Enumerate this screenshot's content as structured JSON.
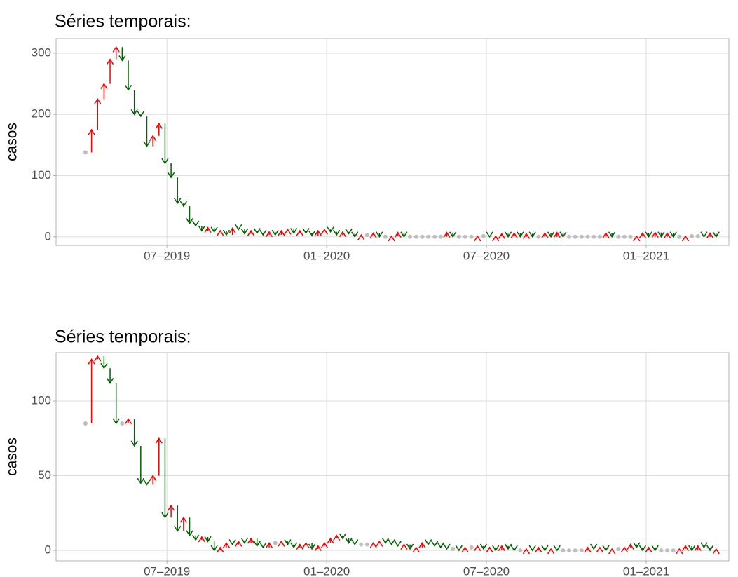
{
  "chart_data": [
    {
      "type": "arrow",
      "title": "Séries temporais:",
      "y_label": "casos",
      "up_color": "#ff0000",
      "down_color": "#006400",
      "flat_color": "#bebebe",
      "xlim": [
        2019.153,
        2021.259
      ],
      "xticks": [
        {
          "value": 2019.5,
          "label": "07–2019"
        },
        {
          "value": 2020.0,
          "label": "01–2020"
        },
        {
          "value": 2020.5,
          "label": "07–2020"
        },
        {
          "value": 2021.0,
          "label": "01–2021"
        }
      ],
      "ylim": [
        -14,
        324
      ],
      "yticks": [
        0,
        100,
        200,
        300
      ],
      "grid": true,
      "x": [
        2019.245,
        2019.264,
        2019.283,
        2019.303,
        2019.322,
        2019.341,
        2019.36,
        2019.379,
        2019.398,
        2019.418,
        2019.437,
        2019.456,
        2019.475,
        2019.494,
        2019.513,
        2019.533,
        2019.552,
        2019.571,
        2019.59,
        2019.609,
        2019.628,
        2019.648,
        2019.667,
        2019.686,
        2019.705,
        2019.724,
        2019.743,
        2019.763,
        2019.782,
        2019.801,
        2019.82,
        2019.839,
        2019.858,
        2019.878,
        2019.897,
        2019.916,
        2019.935,
        2019.954,
        2019.973,
        2019.993,
        2020.012,
        2020.031,
        2020.05,
        2020.069,
        2020.088,
        2020.108,
        2020.127,
        2020.146,
        2020.165,
        2020.184,
        2020.203,
        2020.223,
        2020.242,
        2020.261,
        2020.28,
        2020.299,
        2020.318,
        2020.338,
        2020.357,
        2020.376,
        2020.395,
        2020.414,
        2020.433,
        2020.453,
        2020.472,
        2020.491,
        2020.51,
        2020.529,
        2020.548,
        2020.568,
        2020.587,
        2020.606,
        2020.625,
        2020.644,
        2020.663,
        2020.683,
        2020.702,
        2020.721,
        2020.74,
        2020.759,
        2020.778,
        2020.798,
        2020.817,
        2020.836,
        2020.855,
        2020.874,
        2020.893,
        2020.913,
        2020.932,
        2020.951,
        2020.97,
        2020.989,
        2021.008,
        2021.028,
        2021.047,
        2021.066,
        2021.085,
        2021.104,
        2021.123,
        2021.143,
        2021.162,
        2021.181,
        2021.2,
        2021.219
      ],
      "values": [
        138,
        175,
        225,
        250,
        290,
        310,
        288,
        240,
        200,
        197,
        148,
        165,
        185,
        120,
        97,
        55,
        50,
        22,
        18,
        10,
        15,
        8,
        10,
        3,
        14,
        12,
        5,
        10,
        6,
        3,
        8,
        3,
        10,
        12,
        6,
        10,
        6,
        2,
        10,
        12,
        8,
        3,
        8,
        5,
        0,
        3,
        3,
        6,
        0,
        0,
        1,
        7,
        0,
        0,
        0,
        0,
        0,
        0,
        0,
        7,
        0,
        0,
        0,
        0,
        1,
        1,
        0,
        1,
        5,
        0,
        6,
        0,
        5,
        0,
        0,
        6,
        0,
        7,
        0,
        0,
        0,
        0,
        0,
        0,
        0,
        6,
        0,
        0,
        0,
        0,
        1,
        6,
        0,
        7,
        0,
        6,
        0,
        0,
        1,
        1,
        1,
        0,
        6,
        0
      ]
    },
    {
      "type": "arrow",
      "title": "Séries temporais:",
      "y_label": "casos",
      "up_color": "#ff0000",
      "down_color": "#006400",
      "flat_color": "#bebebe",
      "xlim": [
        2019.153,
        2021.259
      ],
      "xticks": [
        {
          "value": 2019.5,
          "label": "07–2019"
        },
        {
          "value": 2020.0,
          "label": "01–2020"
        },
        {
          "value": 2020.5,
          "label": "07–2020"
        },
        {
          "value": 2021.0,
          "label": "01–2021"
        }
      ],
      "ylim": [
        -7,
        132.4
      ],
      "yticks": [
        0,
        50,
        100
      ],
      "grid": true,
      "x": [
        2019.245,
        2019.264,
        2019.283,
        2019.303,
        2019.322,
        2019.341,
        2019.36,
        2019.379,
        2019.398,
        2019.418,
        2019.437,
        2019.456,
        2019.475,
        2019.494,
        2019.513,
        2019.533,
        2019.552,
        2019.571,
        2019.59,
        2019.609,
        2019.628,
        2019.648,
        2019.667,
        2019.686,
        2019.705,
        2019.724,
        2019.743,
        2019.763,
        2019.782,
        2019.801,
        2019.82,
        2019.839,
        2019.858,
        2019.878,
        2019.897,
        2019.916,
        2019.935,
        2019.954,
        2019.973,
        2019.993,
        2020.012,
        2020.031,
        2020.05,
        2020.069,
        2020.088,
        2020.108,
        2020.127,
        2020.146,
        2020.165,
        2020.184,
        2020.203,
        2020.223,
        2020.242,
        2020.261,
        2020.28,
        2020.299,
        2020.318,
        2020.338,
        2020.357,
        2020.376,
        2020.395,
        2020.414,
        2020.433,
        2020.453,
        2020.472,
        2020.491,
        2020.51,
        2020.529,
        2020.548,
        2020.568,
        2020.587,
        2020.606,
        2020.625,
        2020.644,
        2020.663,
        2020.683,
        2020.702,
        2020.721,
        2020.74,
        2020.759,
        2020.778,
        2020.798,
        2020.817,
        2020.836,
        2020.855,
        2020.874,
        2020.893,
        2020.913,
        2020.932,
        2020.951,
        2020.97,
        2020.989,
        2021.008,
        2021.028,
        2021.047,
        2021.066,
        2021.085,
        2021.104,
        2021.123,
        2021.143,
        2021.162,
        2021.181,
        2021.2,
        2021.219
      ],
      "values": [
        85,
        128,
        130,
        122,
        112,
        85,
        85,
        88,
        70,
        45,
        44,
        50,
        75,
        22,
        30,
        13,
        22,
        10,
        7,
        9,
        6,
        0,
        2,
        5,
        4,
        6,
        5,
        8,
        3,
        2,
        5,
        5,
        6,
        4,
        2,
        4,
        5,
        1,
        3,
        5,
        8,
        10,
        8,
        5,
        4,
        4,
        4,
        5,
        6,
        5,
        4,
        3,
        4,
        1,
        2,
        5,
        4,
        3,
        2,
        1,
        1,
        0,
        2,
        2,
        3,
        1,
        2,
        0,
        3,
        1,
        0,
        0,
        1,
        0,
        2,
        0,
        1,
        0,
        0,
        0,
        0,
        0,
        2,
        1,
        2,
        0,
        1,
        1,
        2,
        4,
        2,
        0,
        2,
        0,
        0,
        0,
        0,
        1,
        3,
        0,
        3,
        2,
        0,
        1
      ]
    }
  ]
}
